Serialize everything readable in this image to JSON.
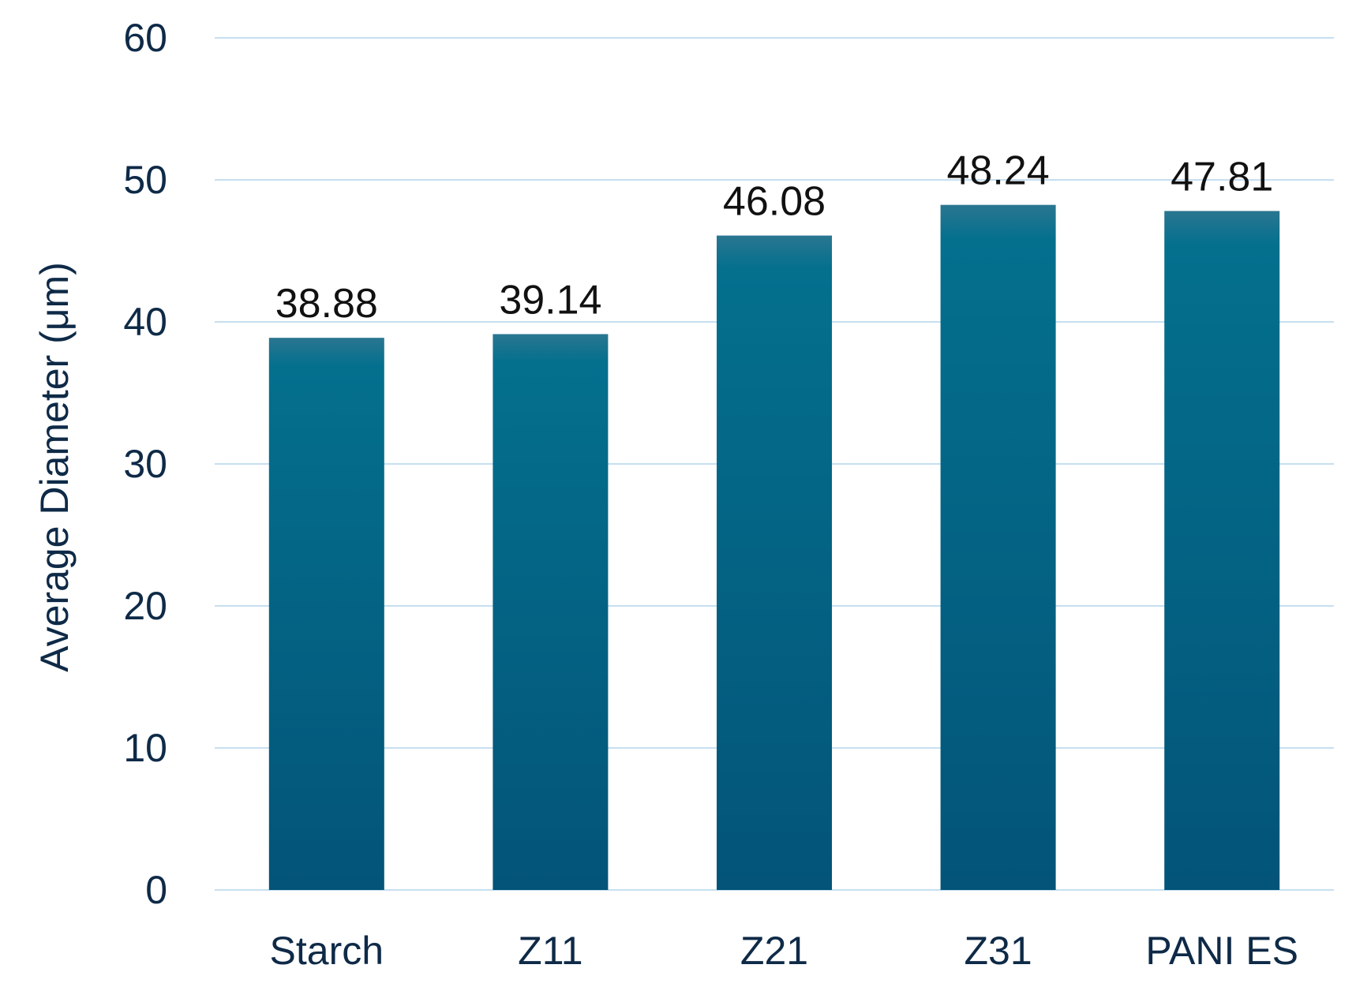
{
  "chart_data": {
    "type": "bar",
    "title": "",
    "xlabel": "",
    "ylabel": "Average Diameter (μm)",
    "ylim": [
      0,
      60
    ],
    "yticks": [
      0,
      10,
      20,
      30,
      40,
      50,
      60
    ],
    "grid": true,
    "legend": "none",
    "categories": [
      "Starch",
      "Z11",
      "Z21",
      "Z31",
      "PANI ES"
    ],
    "values": [
      38.88,
      39.14,
      46.08,
      48.24,
      47.81
    ],
    "data_labels": [
      "38.88",
      "39.14",
      "46.08",
      "48.24",
      "47.81"
    ],
    "colors": {
      "bar_top": "#2a7690",
      "bar_mid": "#04708e",
      "bar_bottom": "#035478",
      "gridline": "#c6dff0",
      "axis_text": "#0e2a47",
      "data_label_text": "#111111"
    }
  }
}
